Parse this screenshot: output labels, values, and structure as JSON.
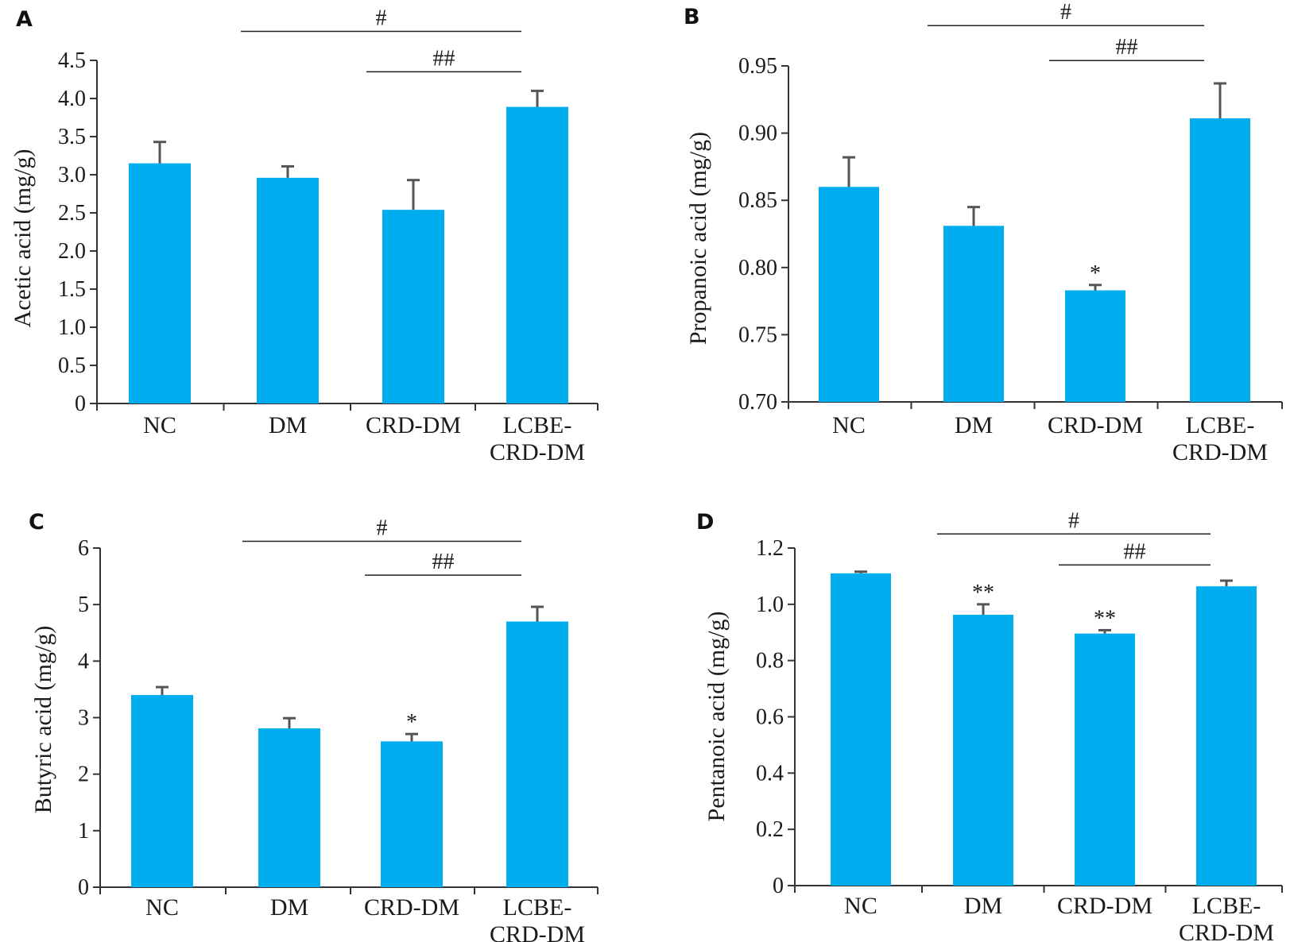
{
  "colors": {
    "bar": "#00AEEF",
    "axis": "#333333",
    "errorbar": "#555555",
    "text": "#1a1a1a"
  },
  "chart_data": [
    {
      "panel": "A",
      "type": "bar",
      "categories": [
        [
          "NC"
        ],
        [
          "DM"
        ],
        [
          "CRD-DM"
        ],
        [
          "LCBE-",
          "CRD-DM"
        ]
      ],
      "values": [
        3.15,
        2.96,
        2.54,
        3.89
      ],
      "errors": [
        0.28,
        0.15,
        0.39,
        0.21
      ],
      "ylabel": "Acetic acid (mg/g)",
      "ylim": [
        0,
        4.5
      ],
      "yticks": [
        "0",
        "0.5",
        "1.0",
        "1.5",
        "2.0",
        "2.5",
        "3.0",
        "3.5",
        "4.0",
        "4.5"
      ],
      "yticks_values": [
        0,
        0.5,
        1.0,
        1.5,
        2.0,
        2.5,
        3.0,
        3.5,
        4.0,
        4.5
      ],
      "stars": [
        "",
        "",
        "",
        ""
      ],
      "brackets": [
        {
          "from": 1,
          "to": 3,
          "label": "#",
          "y": 4.88
        },
        {
          "from": 2,
          "to": 3,
          "label": "##",
          "y": 4.35
        }
      ]
    },
    {
      "panel": "B",
      "type": "bar",
      "categories": [
        [
          "NC"
        ],
        [
          "DM"
        ],
        [
          "CRD-DM"
        ],
        [
          "LCBE-",
          "CRD-DM"
        ]
      ],
      "values": [
        0.86,
        0.831,
        0.783,
        0.911
      ],
      "errors": [
        0.022,
        0.014,
        0.004,
        0.026
      ],
      "ylabel": "Propanoic acid (mg/g)",
      "ylim": [
        0.7,
        0.95
      ],
      "yticks": [
        "0.70",
        "0.75",
        "0.80",
        "0.85",
        "0.90",
        "0.95"
      ],
      "yticks_values": [
        0.7,
        0.75,
        0.8,
        0.85,
        0.9,
        0.95
      ],
      "stars": [
        "",
        "",
        "*",
        ""
      ],
      "brackets": [
        {
          "from": 1,
          "to": 3,
          "label": "#",
          "y": 0.98
        },
        {
          "from": 2,
          "to": 3,
          "label": "##",
          "y": 0.954
        }
      ]
    },
    {
      "panel": "C",
      "type": "bar",
      "categories": [
        [
          "NC"
        ],
        [
          "DM"
        ],
        [
          "CRD-DM"
        ],
        [
          "LCBE-",
          "CRD-DM"
        ]
      ],
      "values": [
        3.4,
        2.81,
        2.58,
        4.7
      ],
      "errors": [
        0.14,
        0.18,
        0.13,
        0.26
      ],
      "ylabel": "Butyric acid (mg/g)",
      "ylim": [
        0,
        6
      ],
      "yticks": [
        "0",
        "1",
        "2",
        "3",
        "4",
        "5",
        "6"
      ],
      "yticks_values": [
        0,
        1,
        2,
        3,
        4,
        5,
        6
      ],
      "stars": [
        "",
        "",
        "*",
        ""
      ],
      "brackets": [
        {
          "from": 1,
          "to": 3,
          "label": "#",
          "y": 6.12
        },
        {
          "from": 2,
          "to": 3,
          "label": "##",
          "y": 5.52
        }
      ]
    },
    {
      "panel": "D",
      "type": "bar",
      "categories": [
        [
          "NC"
        ],
        [
          "DM"
        ],
        [
          "CRD-DM"
        ],
        [
          "LCBE-",
          "CRD-DM"
        ]
      ],
      "values": [
        1.11,
        0.963,
        0.896,
        1.064
      ],
      "errors": [
        0.006,
        0.037,
        0.012,
        0.02
      ],
      "ylabel": "Pentanoic acid (mg/g)",
      "ylim": [
        0,
        1.2
      ],
      "yticks": [
        "0",
        "0.2",
        "0.4",
        "0.6",
        "0.8",
        "1.0",
        "1.2"
      ],
      "yticks_values": [
        0,
        0.2,
        0.4,
        0.6,
        0.8,
        1.0,
        1.2
      ],
      "stars": [
        "",
        "**",
        "**",
        ""
      ],
      "brackets": [
        {
          "from": 1,
          "to": 3,
          "label": "#",
          "y": 1.25
        },
        {
          "from": 2,
          "to": 3,
          "label": "##",
          "y": 1.14
        }
      ]
    }
  ]
}
